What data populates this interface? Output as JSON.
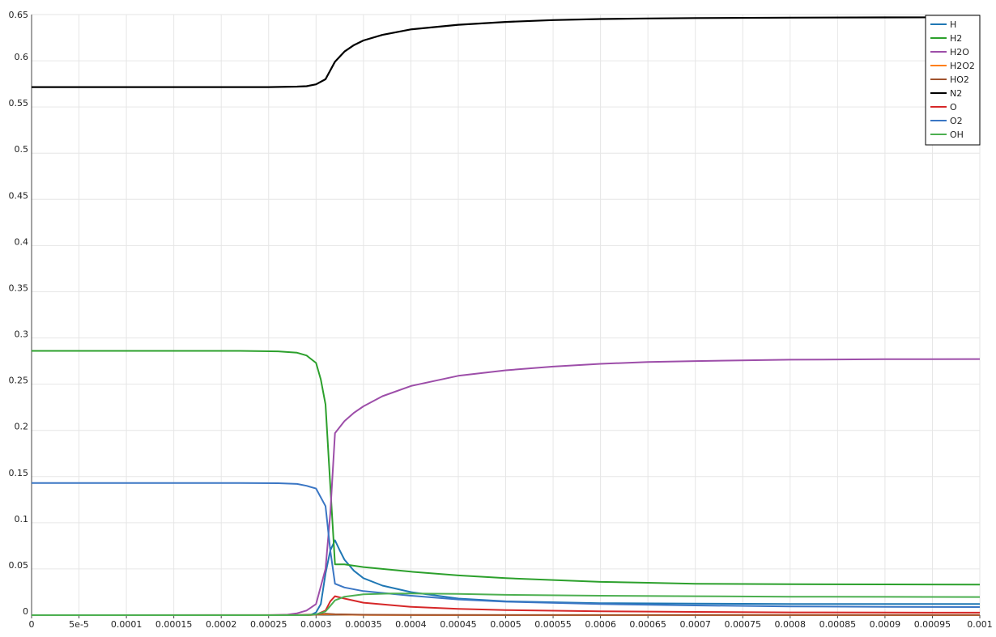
{
  "chart_data": {
    "type": "line",
    "title": "",
    "xlabel": "",
    "ylabel": "",
    "xlim": [
      0,
      0.001
    ],
    "ylim": [
      0,
      0.65
    ],
    "grid": true,
    "legend_position": "top-right",
    "x_ticks": [
      "0",
      "5e-5",
      "0.0001",
      "0.00015",
      "0.0002",
      "0.00025",
      "0.0003",
      "0.00035",
      "0.0004",
      "0.00045",
      "0.0005",
      "0.00055",
      "0.0006",
      "0.00065",
      "0.0007",
      "0.00075",
      "0.0008",
      "0.00085",
      "0.0009",
      "0.00095",
      "0.001"
    ],
    "x_tick_values": [
      0,
      5e-05,
      0.0001,
      0.00015,
      0.0002,
      0.00025,
      0.0003,
      0.00035,
      0.0004,
      0.00045,
      0.0005,
      0.00055,
      0.0006,
      0.00065,
      0.0007,
      0.00075,
      0.0008,
      0.00085,
      0.0009,
      0.00095,
      0.001
    ],
    "y_ticks": [
      "0",
      "0.05",
      "0.1",
      "0.15",
      "0.2",
      "0.25",
      "0.3",
      "0.35",
      "0.4",
      "0.45",
      "0.5",
      "0.55",
      "0.6",
      "0.65"
    ],
    "y_tick_values": [
      0,
      0.05,
      0.1,
      0.15,
      0.2,
      0.25,
      0.3,
      0.35,
      0.4,
      0.45,
      0.5,
      0.55,
      0.6,
      0.65
    ],
    "series": [
      {
        "name": "H",
        "color": "#1f77b4",
        "points": [
          [
            0,
            0
          ],
          [
            0.00028,
            0
          ],
          [
            0.000295,
            0.0005
          ],
          [
            0.0003,
            0.003
          ],
          [
            0.000305,
            0.012
          ],
          [
            0.00031,
            0.045
          ],
          [
            0.000315,
            0.07
          ],
          [
            0.00032,
            0.081
          ],
          [
            0.000325,
            0.07
          ],
          [
            0.00033,
            0.06
          ],
          [
            0.00034,
            0.048
          ],
          [
            0.00035,
            0.04
          ],
          [
            0.00037,
            0.032
          ],
          [
            0.0004,
            0.025
          ],
          [
            0.00045,
            0.018
          ],
          [
            0.0005,
            0.015
          ],
          [
            0.0006,
            0.013
          ],
          [
            0.0007,
            0.0125
          ],
          [
            0.0008,
            0.012
          ],
          [
            0.0009,
            0.012
          ],
          [
            0.001,
            0.012
          ]
        ]
      },
      {
        "name": "H2",
        "color": "#2ca02c",
        "points": [
          [
            0,
            0.286
          ],
          [
            0.00022,
            0.286
          ],
          [
            0.00026,
            0.2855
          ],
          [
            0.00028,
            0.284
          ],
          [
            0.00029,
            0.281
          ],
          [
            0.0003,
            0.273
          ],
          [
            0.000305,
            0.255
          ],
          [
            0.00031,
            0.228
          ],
          [
            0.000315,
            0.14
          ],
          [
            0.00032,
            0.055
          ],
          [
            0.00033,
            0.055
          ],
          [
            0.00035,
            0.052
          ],
          [
            0.0004,
            0.047
          ],
          [
            0.00045,
            0.043
          ],
          [
            0.0005,
            0.04
          ],
          [
            0.00055,
            0.038
          ],
          [
            0.0006,
            0.036
          ],
          [
            0.00065,
            0.035
          ],
          [
            0.0007,
            0.034
          ],
          [
            0.0008,
            0.0335
          ],
          [
            0.0009,
            0.0333
          ],
          [
            0.001,
            0.033
          ]
        ]
      },
      {
        "name": "H2O",
        "color": "#9d4ea9",
        "points": [
          [
            0,
            0
          ],
          [
            0.00025,
            0
          ],
          [
            0.00027,
            0.0005
          ],
          [
            0.00028,
            0.002
          ],
          [
            0.00029,
            0.005
          ],
          [
            0.0003,
            0.012
          ],
          [
            0.00031,
            0.05
          ],
          [
            0.000315,
            0.11
          ],
          [
            0.00032,
            0.197
          ],
          [
            0.00033,
            0.21
          ],
          [
            0.00034,
            0.219
          ],
          [
            0.00035,
            0.226
          ],
          [
            0.00037,
            0.237
          ],
          [
            0.0004,
            0.248
          ],
          [
            0.00045,
            0.259
          ],
          [
            0.0005,
            0.265
          ],
          [
            0.00055,
            0.269
          ],
          [
            0.0006,
            0.272
          ],
          [
            0.00065,
            0.274
          ],
          [
            0.0007,
            0.275
          ],
          [
            0.0008,
            0.2765
          ],
          [
            0.0009,
            0.277
          ],
          [
            0.001,
            0.2772
          ]
        ]
      },
      {
        "name": "H2O2",
        "color": "#ff7f0e",
        "points": [
          [
            0,
            0
          ],
          [
            0.00029,
            0
          ],
          [
            0.0003,
            0.0005
          ],
          [
            0.00031,
            0.001
          ],
          [
            0.00032,
            0.0008
          ],
          [
            0.00035,
            0.0003
          ],
          [
            0.0004,
            0.0001
          ],
          [
            0.001,
            0.0001
          ]
        ]
      },
      {
        "name": "HO2",
        "color": "#a0522d",
        "points": [
          [
            0,
            0
          ],
          [
            0.00028,
            0.0002
          ],
          [
            0.0003,
            0.0008
          ],
          [
            0.00031,
            0.0015
          ],
          [
            0.00032,
            0.001
          ],
          [
            0.00035,
            0.0004
          ],
          [
            0.0004,
            0.0002
          ],
          [
            0.001,
            0.0001
          ]
        ]
      },
      {
        "name": "N2",
        "color": "#000000",
        "points": [
          [
            0,
            0.5715
          ],
          [
            0.00025,
            0.5715
          ],
          [
            0.00028,
            0.572
          ],
          [
            0.00029,
            0.5725
          ],
          [
            0.0003,
            0.5745
          ],
          [
            0.00031,
            0.58
          ],
          [
            0.00032,
            0.599
          ],
          [
            0.00033,
            0.61
          ],
          [
            0.00034,
            0.617
          ],
          [
            0.00035,
            0.622
          ],
          [
            0.00037,
            0.628
          ],
          [
            0.0004,
            0.634
          ],
          [
            0.00045,
            0.639
          ],
          [
            0.0005,
            0.642
          ],
          [
            0.00055,
            0.644
          ],
          [
            0.0006,
            0.6452
          ],
          [
            0.00065,
            0.6458
          ],
          [
            0.0007,
            0.6462
          ],
          [
            0.0008,
            0.6467
          ],
          [
            0.0009,
            0.6469
          ],
          [
            0.001,
            0.647
          ]
        ]
      },
      {
        "name": "O",
        "color": "#d62728",
        "points": [
          [
            0,
            0
          ],
          [
            0.00029,
            0
          ],
          [
            0.0003,
            0.0005
          ],
          [
            0.00031,
            0.005
          ],
          [
            0.000315,
            0.015
          ],
          [
            0.00032,
            0.0205
          ],
          [
            0.00033,
            0.018
          ],
          [
            0.00035,
            0.0135
          ],
          [
            0.0004,
            0.009
          ],
          [
            0.00045,
            0.0068
          ],
          [
            0.0005,
            0.0055
          ],
          [
            0.0006,
            0.0042
          ],
          [
            0.0007,
            0.0035
          ],
          [
            0.0008,
            0.003
          ],
          [
            0.0009,
            0.0028
          ],
          [
            0.001,
            0.0027
          ]
        ]
      },
      {
        "name": "O2",
        "color": "#3a76c4",
        "points": [
          [
            0,
            0.143
          ],
          [
            0.00022,
            0.143
          ],
          [
            0.00026,
            0.1428
          ],
          [
            0.00028,
            0.142
          ],
          [
            0.00029,
            0.14
          ],
          [
            0.0003,
            0.137
          ],
          [
            0.00031,
            0.118
          ],
          [
            0.000315,
            0.07
          ],
          [
            0.00032,
            0.034
          ],
          [
            0.00033,
            0.03
          ],
          [
            0.00035,
            0.026
          ],
          [
            0.0004,
            0.021
          ],
          [
            0.00045,
            0.017
          ],
          [
            0.0005,
            0.0145
          ],
          [
            0.0006,
            0.012
          ],
          [
            0.0007,
            0.0105
          ],
          [
            0.0008,
            0.0095
          ],
          [
            0.0009,
            0.009
          ],
          [
            0.001,
            0.0088
          ]
        ]
      },
      {
        "name": "OH",
        "color": "#4caf50",
        "points": [
          [
            0,
            0
          ],
          [
            0.00029,
            0
          ],
          [
            0.0003,
            0.0008
          ],
          [
            0.00031,
            0.004
          ],
          [
            0.000315,
            0.01
          ],
          [
            0.00032,
            0.016
          ],
          [
            0.00033,
            0.02
          ],
          [
            0.00035,
            0.0225
          ],
          [
            0.00038,
            0.0235
          ],
          [
            0.0004,
            0.0235
          ],
          [
            0.00045,
            0.023
          ],
          [
            0.0005,
            0.022
          ],
          [
            0.0006,
            0.021
          ],
          [
            0.0007,
            0.0205
          ],
          [
            0.0008,
            0.02
          ],
          [
            0.0009,
            0.0198
          ],
          [
            0.001,
            0.0196
          ]
        ]
      }
    ]
  }
}
